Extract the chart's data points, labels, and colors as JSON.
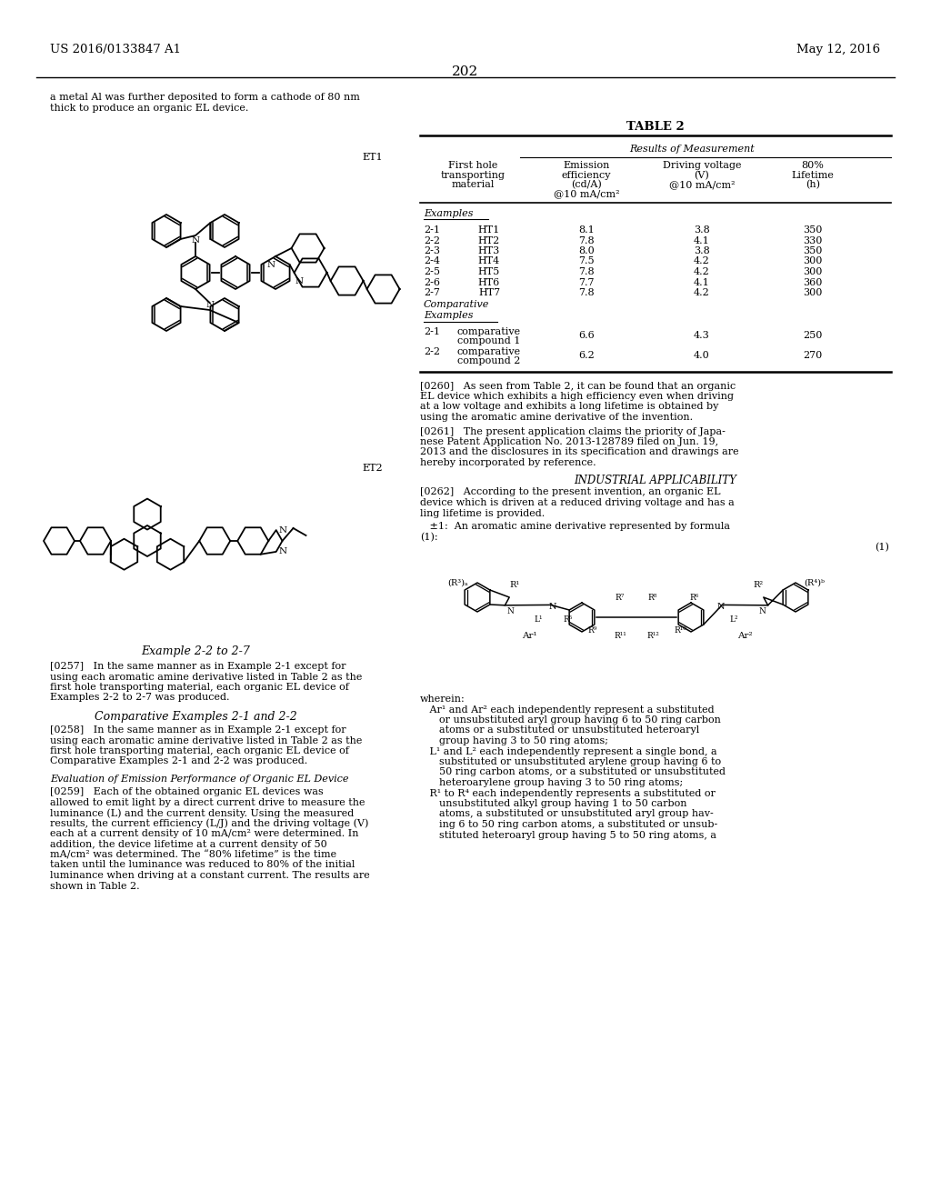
{
  "patent_left": "US 2016/0133847 A1",
  "patent_right": "May 12, 2016",
  "page_number": "202",
  "intro_text_1": "a metal Al was further deposited to form a cathode of 80 nm",
  "intro_text_2": "thick to produce an organic EL device.",
  "et1_label": "ET1",
  "et2_label": "ET2",
  "example_heading": "Example 2-2 to 2-7",
  "example_text": [
    "[0257]   In the same manner as in Example 2-1 except for",
    "using each aromatic amine derivative listed in Table 2 as the",
    "first hole transporting material, each organic EL device of",
    "Examples 2-2 to 2-7 was produced."
  ],
  "comparative_heading": "Comparative Examples 2-1 and 2-2",
  "comparative_text": [
    "[0258]   In the same manner as in Example 2-1 except for",
    "using each aromatic amine derivative listed in Table 2 as the",
    "first hole transporting material, each organic EL device of",
    "Comparative Examples 2-1 and 2-2 was produced."
  ],
  "evaluation_heading": "Evaluation of Emission Performance of Organic EL Device",
  "evaluation_text": [
    "[0259]   Each of the obtained organic EL devices was",
    "allowed to emit light by a direct current drive to measure the",
    "luminance (L) and the current density. Using the measured",
    "results, the current efficiency (L/J) and the driving voltage (V)",
    "each at a current density of 10 mA/cm² were determined. In",
    "addition, the device lifetime at a current density of 50",
    "mA/cm² was determined. The “80% lifetime” is the time",
    "taken until the luminance was reduced to 80% of the initial",
    "luminance when driving at a constant current. The results are",
    "shown in Table 2."
  ],
  "table_title": "TABLE 2",
  "results_of_measurement": "Results of Measurement",
  "examples_label": "Examples",
  "examples_data": [
    [
      "2-1",
      "HT1",
      "8.1",
      "3.8",
      "350"
    ],
    [
      "2-2",
      "HT2",
      "7.8",
      "4.1",
      "330"
    ],
    [
      "2-3",
      "HT3",
      "8.0",
      "3.8",
      "350"
    ],
    [
      "2-4",
      "HT4",
      "7.5",
      "4.2",
      "300"
    ],
    [
      "2-5",
      "HT5",
      "7.8",
      "4.2",
      "300"
    ],
    [
      "2-6",
      "HT6",
      "7.7",
      "4.1",
      "360"
    ],
    [
      "2-7",
      "HT7",
      "7.8",
      "4.2",
      "300"
    ]
  ],
  "comparative_data": [
    [
      "2-1",
      "comparative",
      "compound 1",
      "6.6",
      "4.3",
      "250"
    ],
    [
      "2-2",
      "comparative",
      "compound 2",
      "6.2",
      "4.0",
      "270"
    ]
  ],
  "paragraph_260": [
    "[0260]   As seen from Table 2, it can be found that an organic",
    "EL device which exhibits a high efficiency even when driving",
    "at a low voltage and exhibits a long lifetime is obtained by",
    "using the aromatic amine derivative of the invention."
  ],
  "paragraph_261": [
    "[0261]   The present application claims the priority of Japa-",
    "nese Patent Application No. 2013-128789 filed on Jun. 19,",
    "2013 and the disclosures in its specification and drawings are",
    "hereby incorporated by reference."
  ],
  "industrial_heading": "INDUSTRIAL APPLICABILITY",
  "paragraph_262": [
    "[0262]   According to the present invention, an organic EL",
    "device which is driven at a reduced driving voltage and has a",
    "ling lifetime is provided."
  ],
  "claim_1_text": [
    "   ±1:  An aromatic amine derivative represented by formula",
    "(1):"
  ],
  "formula_label": "(1)",
  "wherein_text": [
    "wherein:",
    "   Ar¹ and Ar² each independently represent a substituted",
    "      or unsubstituted aryl group having 6 to 50 ring carbon",
    "      atoms or a substituted or unsubstituted heteroaryl",
    "      group having 3 to 50 ring atoms;",
    "   L¹ and L² each independently represent a single bond, a",
    "      substituted or unsubstituted arylene group having 6 to",
    "      50 ring carbon atoms, or a substituted or unsubstituted",
    "      heteroarylene group having 3 to 50 ring atoms;",
    "   R¹ to R⁴ each independently represents a substituted or",
    "      unsubstituted alkyl group having 1 to 50 carbon",
    "      atoms, a substituted or unsubstituted aryl group hav-",
    "      ing 6 to 50 ring carbon atoms, a substituted or unsub-",
    "      stituted heteroaryl group having 5 to 50 ring atoms, a"
  ],
  "bg_color": "#ffffff"
}
